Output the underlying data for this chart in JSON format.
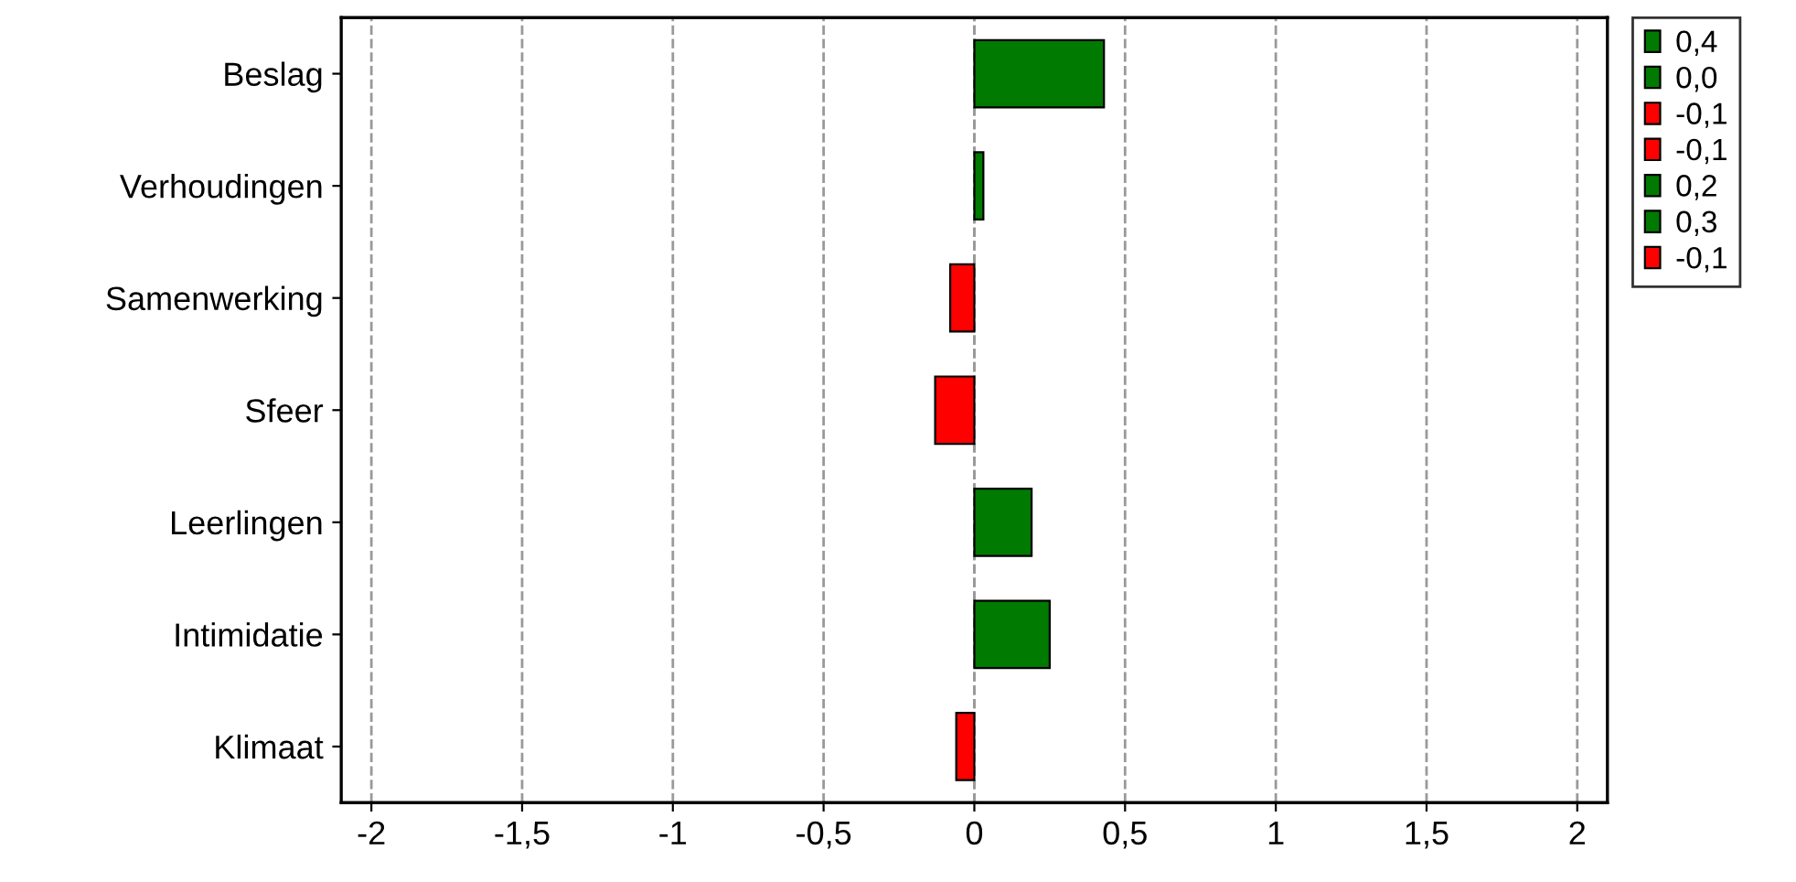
{
  "chart_data": {
    "type": "bar",
    "orientation": "horizontal",
    "categories": [
      "Beslag",
      "Verhoudingen",
      "Samenwerking",
      "Sfeer",
      "Leerlingen",
      "Intimidatie",
      "Klimaat"
    ],
    "series": [
      {
        "name": "0,4",
        "color": "#007a00",
        "values": [
          0.43,
          null,
          null,
          null,
          null,
          null,
          null
        ]
      },
      {
        "name": "0,0",
        "color": "#007a00",
        "values": [
          null,
          0.03,
          null,
          null,
          null,
          null,
          null
        ]
      },
      {
        "name": "-0,1",
        "color": "#ff0000",
        "values": [
          null,
          null,
          -0.08,
          null,
          null,
          null,
          null
        ]
      },
      {
        "name": "-0,1",
        "color": "#ff0000",
        "values": [
          null,
          null,
          null,
          -0.13,
          null,
          null,
          null
        ]
      },
      {
        "name": "0,2",
        "color": "#007a00",
        "values": [
          null,
          null,
          null,
          null,
          0.19,
          null,
          null
        ]
      },
      {
        "name": "0,3",
        "color": "#007a00",
        "values": [
          null,
          null,
          null,
          null,
          null,
          0.25,
          null
        ]
      },
      {
        "name": "-0,1",
        "color": "#ff0000",
        "values": [
          null,
          null,
          null,
          null,
          null,
          null,
          -0.06
        ]
      }
    ],
    "xlim": [
      -2.1,
      2.1
    ],
    "xticks": [
      {
        "value": -2,
        "label": "-2"
      },
      {
        "value": -1.5,
        "label": "-1,5"
      },
      {
        "value": -1,
        "label": "-1"
      },
      {
        "value": -0.5,
        "label": "-0,5"
      },
      {
        "value": 0,
        "label": "0"
      },
      {
        "value": 0.5,
        "label": "0,5"
      },
      {
        "value": 1,
        "label": "1"
      },
      {
        "value": 1.5,
        "label": "1,5"
      },
      {
        "value": 2,
        "label": "2"
      }
    ],
    "grid": "x",
    "legend": "top right"
  }
}
